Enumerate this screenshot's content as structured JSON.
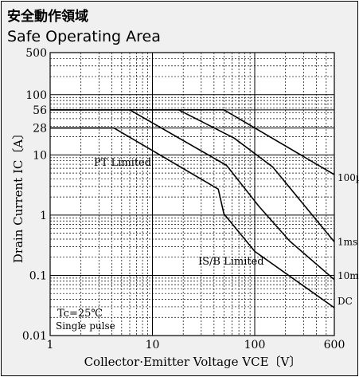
{
  "title_jp": "安全動作領域",
  "title_en": "Safe Operating Area",
  "chart_data": {
    "type": "line",
    "xscale": "log",
    "yscale": "log",
    "xlim": [
      1,
      600
    ],
    "ylim": [
      0.01,
      500
    ],
    "xticks": [
      1,
      10,
      100,
      600
    ],
    "xtick_labels": [
      "1",
      "10",
      "100",
      "600"
    ],
    "yticks": [
      500,
      100,
      56,
      28,
      10,
      1,
      0.1,
      0.01
    ],
    "ytick_labels": [
      "500",
      "100",
      "56",
      "28",
      "10",
      "1",
      "0.1",
      "0.01"
    ],
    "xlabel": "Collector·Emitter Voltage  VCE〔V〕",
    "ylabel": "Drain Current  IC〔A〕",
    "grid": true,
    "series": [
      {
        "name": "100µs",
        "x": [
          1,
          50,
          600
        ],
        "y": [
          56,
          56,
          4.7
        ]
      },
      {
        "name": "1ms",
        "x": [
          1,
          18,
          63,
          150,
          600
        ],
        "y": [
          56,
          56,
          19,
          6.3,
          0.36
        ]
      },
      {
        "name": "10ms",
        "x": [
          1,
          6,
          53,
          110,
          220,
          600
        ],
        "y": [
          56,
          56,
          6.7,
          1.4,
          0.37,
          0.085
        ]
      },
      {
        "name": "DC",
        "x": [
          1,
          4.2,
          44,
          50,
          100,
          600
        ],
        "y": [
          28,
          28,
          2.7,
          1.05,
          0.25,
          0.029
        ]
      }
    ],
    "annotations": {
      "pt_limited": "PT Limited",
      "isb_limited": "IS/B Limited",
      "condition_1": "Tc=25℃",
      "condition_2": "Single pulse"
    }
  }
}
